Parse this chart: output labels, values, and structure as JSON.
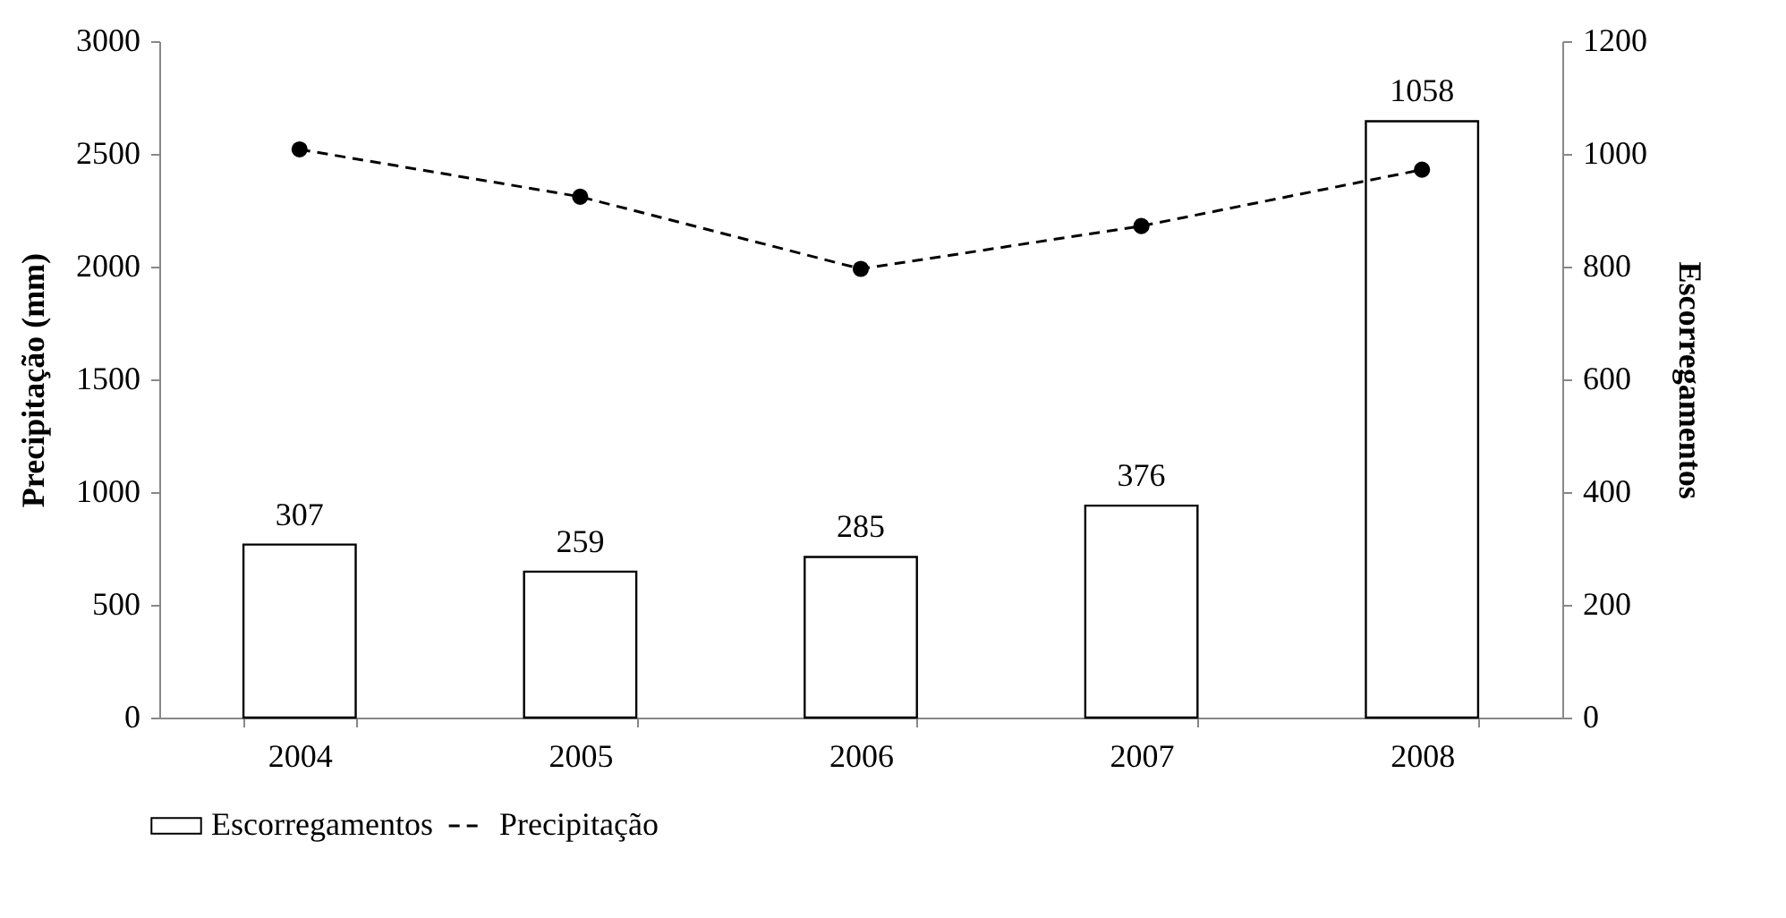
{
  "chart_data": {
    "type": "bar",
    "categories": [
      "2004",
      "2005",
      "2006",
      "2007",
      "2008"
    ],
    "ylabel": "Precipitação (mm)",
    "y2label": "Escorregamentos",
    "series": [
      {
        "name": "Escorregamentos",
        "axis": "y2",
        "color": "#ffffff",
        "values": [
          307,
          259,
          285,
          376,
          1058
        ],
        "value_labels": [
          "307",
          "259",
          "285",
          "376",
          "1058"
        ]
      },
      {
        "name": "Precipitação",
        "type": "line",
        "color": "#000000",
        "marker": "circle",
        "line_style": "dashed",
        "values": [
          2520,
          2310,
          1990,
          2180,
          2430
        ]
      }
    ],
    "ylim": [
      0,
      3000
    ],
    "yticks": [
      0,
      500,
      1000,
      1500,
      2000,
      2500,
      3000
    ],
    "y2lim": [
      0,
      1200
    ],
    "y2ticks": [
      0,
      200,
      400,
      600,
      800,
      1000,
      1200
    ],
    "legend": "bottom",
    "grid": false
  }
}
